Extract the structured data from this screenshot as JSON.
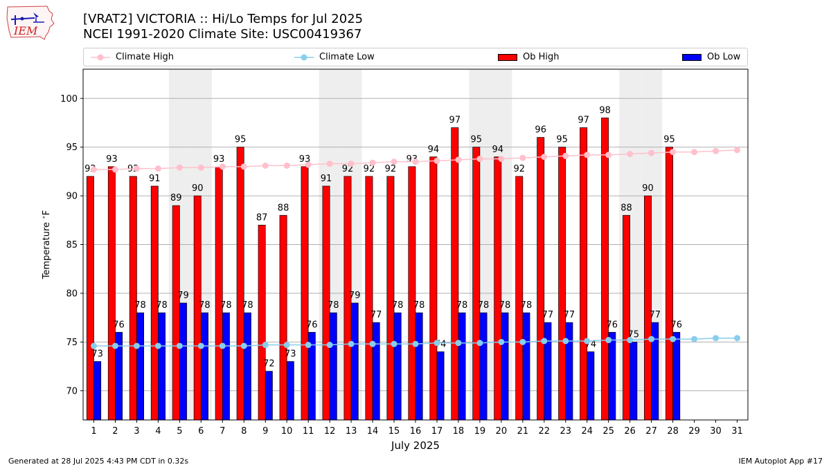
{
  "header": {
    "title_line1": "[VRAT2] VICTORIA :: Hi/Lo Temps for Jul 2025",
    "title_line2": "NCEI 1991-2020 Climate Site: USC00419367",
    "logo_text": "IEM"
  },
  "footer": {
    "generated": "Generated at 28 Jul 2025 4:43 PM CDT in 0.32s",
    "app": "IEM Autoplot App #17"
  },
  "colors": {
    "ob_high": "#ff0000",
    "ob_low": "#0000ff",
    "climate_high": "#ffc0cb",
    "climate_low": "#87ceeb",
    "weekend_shade": "#eeeeee",
    "grid": "#b0b0b0"
  },
  "chart_data": {
    "type": "bar",
    "xlabel": "July 2025",
    "ylabel": "Temperature $^\\circ$F",
    "ylim": [
      67,
      103
    ],
    "yticks": [
      70,
      75,
      80,
      85,
      90,
      95,
      100
    ],
    "grid": "horizontal",
    "legend_position": "top",
    "categories": [
      1,
      2,
      3,
      4,
      5,
      6,
      7,
      8,
      9,
      10,
      11,
      12,
      13,
      14,
      15,
      16,
      17,
      18,
      19,
      20,
      21,
      22,
      23,
      24,
      25,
      26,
      27,
      28,
      29,
      30,
      31
    ],
    "shaded_days": [
      5,
      6,
      12,
      13,
      19,
      20,
      26,
      27
    ],
    "series": [
      {
        "name": "Ob High",
        "kind": "bar",
        "values": [
          92,
          93,
          92,
          91,
          89,
          90,
          93,
          95,
          87,
          88,
          93,
          91,
          92,
          92,
          92,
          93,
          94,
          97,
          95,
          94,
          92,
          96,
          95,
          97,
          98,
          88,
          90,
          95,
          null,
          null,
          null
        ]
      },
      {
        "name": "Ob Low",
        "kind": "bar",
        "values": [
          73,
          76,
          78,
          78,
          79,
          78,
          78,
          78,
          72,
          73,
          76,
          78,
          79,
          77,
          78,
          78,
          74,
          78,
          78,
          78,
          78,
          77,
          77,
          74,
          76,
          75,
          77,
          76,
          null,
          null,
          null
        ]
      },
      {
        "name": "Climate High",
        "kind": "line",
        "values": [
          92.7,
          92.7,
          92.8,
          92.8,
          92.9,
          92.9,
          93.0,
          93.0,
          93.1,
          93.1,
          93.2,
          93.3,
          93.3,
          93.4,
          93.5,
          93.5,
          93.6,
          93.7,
          93.8,
          93.8,
          93.9,
          94.0,
          94.1,
          94.2,
          94.2,
          94.3,
          94.4,
          94.5,
          94.5,
          94.6,
          94.7
        ]
      },
      {
        "name": "Climate Low",
        "kind": "line",
        "values": [
          74.6,
          74.6,
          74.6,
          74.6,
          74.6,
          74.6,
          74.6,
          74.6,
          74.7,
          74.7,
          74.7,
          74.7,
          74.8,
          74.8,
          74.8,
          74.8,
          74.9,
          74.9,
          74.9,
          75.0,
          75.0,
          75.1,
          75.1,
          75.1,
          75.2,
          75.2,
          75.3,
          75.3,
          75.3,
          75.4,
          75.4
        ]
      }
    ]
  }
}
